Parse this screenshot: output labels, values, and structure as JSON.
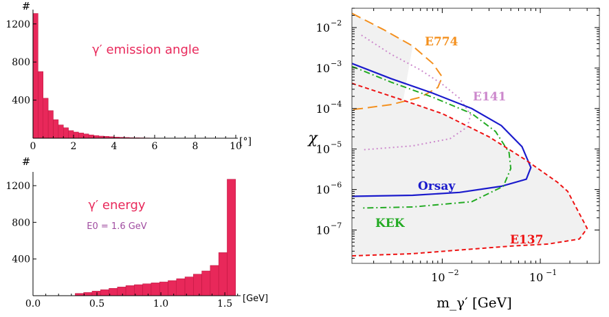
{
  "chart_data": [
    {
      "type": "bar",
      "title": "γ′ emission angle",
      "ylabel": "#",
      "xlabel": "[°]",
      "xlim": [
        0,
        10
      ],
      "ylim": [
        0,
        1350
      ],
      "xticks": [
        0,
        2,
        4,
        6,
        8,
        10
      ],
      "yticks": [
        400,
        800,
        1200
      ],
      "bin_width": 0.25,
      "bin_start": 0,
      "values": [
        1310,
        700,
        420,
        290,
        195,
        140,
        110,
        80,
        65,
        55,
        45,
        35,
        28,
        22,
        20,
        16,
        12,
        10,
        8,
        6,
        5,
        4,
        3,
        2,
        2,
        1,
        1,
        1,
        1,
        0,
        0,
        0,
        0,
        0,
        0,
        0,
        0,
        0,
        0,
        0
      ],
      "color": "#e8285a"
    },
    {
      "type": "bar",
      "title": "γ′ energy",
      "annotation": "E0 = 1.6 GeV",
      "ylabel": "#",
      "xlabel": "[GeV]",
      "xlim": [
        0,
        1.65
      ],
      "ylim": [
        0,
        1350
      ],
      "xticks": [
        "0.0",
        "0.5",
        "1.0",
        "1.5"
      ],
      "xtick_values": [
        0,
        0.5,
        1.0,
        1.5
      ],
      "yticks": [
        400,
        800,
        1200
      ],
      "bin_width": 0.066,
      "bins_x_start": [
        0.33,
        0.396,
        0.462,
        0.528,
        0.594,
        0.66,
        0.726,
        0.792,
        0.858,
        0.924,
        0.99,
        1.056,
        1.122,
        1.188,
        1.254,
        1.32,
        1.386,
        1.452,
        1.518
      ],
      "values": [
        25,
        35,
        50,
        65,
        80,
        95,
        110,
        120,
        130,
        140,
        150,
        165,
        185,
        205,
        235,
        270,
        330,
        470,
        1270
      ],
      "color": "#e8285a"
    },
    {
      "type": "line",
      "ylabel": "χ",
      "xlabel": "m_γ′ [GeV]",
      "xscale": "log",
      "yscale": "log",
      "xlim": [
        0.0012,
        0.4
      ],
      "ylim": [
        1.5e-08,
        0.03
      ],
      "xtick_labels": [
        "10",
        "10"
      ],
      "xtick_exponents": [
        "−2",
        "−1"
      ],
      "xtick_values": [
        0.01,
        0.1
      ],
      "ytick_labels": [
        "10",
        "10",
        "10",
        "10",
        "10",
        "10"
      ],
      "ytick_exponents": [
        "−2",
        "−3",
        "−4",
        "−5",
        "−6",
        "−7"
      ],
      "ytick_values": [
        0.01,
        0.001,
        0.0001,
        1e-05,
        1e-06,
        1e-07
      ],
      "excluded_region_color": "#f1f1f1",
      "series": [
        {
          "name": "E774",
          "color": "#f4901e",
          "style": "longdash",
          "points": [
            [
              0.0012,
              0.0225
            ],
            [
              0.0025,
              0.009
            ],
            [
              0.005,
              0.0035
            ],
            [
              0.008,
              0.0013
            ],
            [
              0.01,
              0.0006
            ],
            [
              0.009,
              0.00033
            ],
            [
              0.006,
              0.00019
            ],
            [
              0.003,
              0.000125
            ],
            [
              0.0015,
              0.0001
            ],
            [
              0.0012,
              9.5e-05
            ]
          ]
        },
        {
          "name": "E141",
          "color": "#cc88cc",
          "style": "dotted",
          "points": [
            [
              0.0015,
              0.0065
            ],
            [
              0.003,
              0.0022
            ],
            [
              0.006,
              0.0009
            ],
            [
              0.01,
              0.0004
            ],
            [
              0.015,
              0.00018
            ],
            [
              0.0195,
              7e-05
            ],
            [
              0.018,
              3.5e-05
            ],
            [
              0.012,
              1.8e-05
            ],
            [
              0.005,
              1.2e-05
            ],
            [
              0.0015,
              9.5e-06
            ]
          ]
        },
        {
          "name": "Orsay",
          "color": "#1a1acc",
          "style": "solid",
          "points": [
            [
              0.0012,
              0.0013
            ],
            [
              0.003,
              0.00055
            ],
            [
              0.008,
              0.00024
            ],
            [
              0.02,
              0.0001
            ],
            [
              0.04,
              3.8e-05
            ],
            [
              0.065,
              1.15e-05
            ],
            [
              0.08,
              3.5e-06
            ],
            [
              0.072,
              1.8e-06
            ],
            [
              0.04,
              1.2e-06
            ],
            [
              0.015,
              8.5e-07
            ],
            [
              0.005,
              7.2e-07
            ],
            [
              0.0012,
              6.8e-07
            ]
          ]
        },
        {
          "name": "KEK",
          "color": "#22aa22",
          "style": "dashdot",
          "points": [
            [
              0.0012,
              0.0011
            ],
            [
              0.003,
              0.00045
            ],
            [
              0.008,
              0.00019
            ],
            [
              0.02,
              7.5e-05
            ],
            [
              0.035,
              2.7e-05
            ],
            [
              0.048,
              8.2e-06
            ],
            [
              0.05,
              3.3e-06
            ],
            [
              0.042,
              1.2e-06
            ],
            [
              0.02,
              5e-07
            ],
            [
              0.005,
              3.7e-07
            ],
            [
              0.0015,
              3.5e-07
            ]
          ]
        },
        {
          "name": "E137",
          "color": "#ee1111",
          "style": "shortdash",
          "points": [
            [
              0.0012,
              0.00042
            ],
            [
              0.004,
              0.00016
            ],
            [
              0.01,
              7.5e-05
            ],
            [
              0.03,
              2e-05
            ],
            [
              0.07,
              5.5e-06
            ],
            [
              0.15,
              1.5e-06
            ],
            [
              0.19,
              9e-07
            ],
            [
              0.3,
              1.1e-07
            ],
            [
              0.25,
              6e-08
            ],
            [
              0.12,
              4.5e-08
            ],
            [
              0.05,
              4e-08
            ],
            [
              0.015,
              3.2e-08
            ],
            [
              0.005,
              2.6e-08
            ],
            [
              0.0012,
              2.3e-08
            ]
          ]
        }
      ]
    }
  ]
}
